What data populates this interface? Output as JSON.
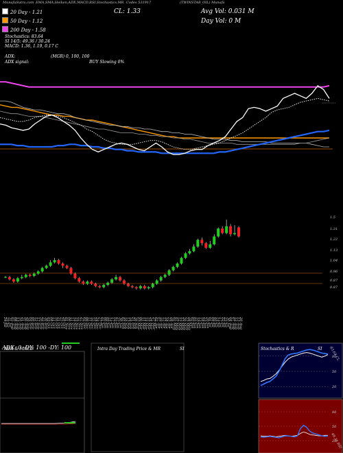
{
  "header": {
    "title_left": "MunafaSutra.com",
    "indicators": "EMA,SMA,Heiken,ADX,MACD,RSI,Stochastics,MR",
    "cl_label": "CL: 1.33",
    "symbol_left": "Codes 531917",
    "symbol_right": "(TWINSTAR_OIL) Munafa"
  },
  "legend": [
    {
      "label": "20 Day - 1.21",
      "color": "#ffffff"
    },
    {
      "label": "50 Day - 1.12",
      "color": "#ff9900"
    },
    {
      "label": "200 Day - 1.58",
      "color": "#ee44ee"
    }
  ],
  "volume": {
    "avg": "Avg Vol: 0.031 M",
    "day": "Day Vol: 0  M"
  },
  "stats": {
    "stochastics": "Stochastics: 83.64",
    "si": "SI 14/5: 49.36 / 30.24",
    "macd": "MACD: 1.36, 1.19, 0.17 C",
    "adx": "ADX:",
    "mgr": "(MGR) 0,  100,  100",
    "adx_signal": "ADX  signal:",
    "buy": "BUY Slowing 0%"
  },
  "price_axis": [
    "1.5",
    "1.31",
    "1.22",
    "1.13",
    "1.04",
    "0.96",
    "0.87",
    "0.87"
  ],
  "dates": [
    "24 Jul",
    "29 Jul",
    "31 Jul",
    "05 Aug",
    "08 Aug",
    "13 Aug",
    "16 Aug",
    "21 Aug",
    "26 Aug",
    "29 Aug",
    "04 Sep",
    "09 Sep",
    "12 Sep",
    "17 Sep",
    "20 Sep",
    "25 Sep",
    "30 Sep",
    "03 Oct",
    "08 Oct",
    "11 Oct",
    "16 Oct",
    "21 Oct",
    "25 Oct",
    "29 Oct",
    "01 Nov",
    "06 Nov",
    "11 Nov",
    "14 Nov",
    "19 Nov",
    "22 Nov",
    "27 Nov",
    "02 Dec",
    "06 Dec",
    "11 Dec",
    "16 Dec",
    "19 Dec",
    "24 Dec",
    "27 Dec",
    "01 Jan",
    "06 Jan",
    "09 Jan",
    "14 Jan",
    "17 Jan",
    "22 Jan",
    "27 Jan",
    "30 Jan",
    "05 Feb",
    "10 Feb",
    "13 Feb",
    "18 Feb",
    "21 Feb",
    "26 Feb",
    "03 Mar",
    "06 Mar",
    "11 Mar",
    "14 Mar",
    "19 Mar",
    "24 Mar",
    "27 Mar",
    "02 Apr",
    "07 Apr",
    "10 Apr",
    "15 Apr",
    "18 Apr",
    "23 Apr",
    "28 Apr",
    "02 May",
    "07 May",
    "12 May",
    "15 May",
    "20 May",
    "23 May",
    "28 May",
    "02 Jun",
    "05 Jun",
    "10 Jun",
    "13 Jun",
    "18 Jun",
    "23 Jun",
    "26 Jun",
    "01 Jul",
    "04 Jul",
    "09 Jul",
    "14 Jul",
    "17 Jul",
    "22 Jul",
    "25 Jul",
    "30 Jul",
    "04 Aug",
    "07 Aug",
    "12 Aug",
    "15 Aug",
    "20 Aug"
  ],
  "panels": {
    "adx_title": "ADX  & MACD",
    "adx_text": "ADX: 0  -DY: 100  -DY: 100",
    "intra_title": "Intra  Day Trading Price  & MR",
    "intra_si": "SI",
    "stoch_title": "Stochastics & R",
    "stoch_si": "SI",
    "stoch_axis_top": [
      "80",
      "50",
      "20"
    ],
    "stoch_axis_bottom": [
      "80",
      "50",
      "20"
    ],
    "stoch_value_label": "83.64 CL",
    "rsi_value_label": "49.36 RSI"
  },
  "chart_data": {
    "type": "candlestick",
    "ylim": [
      0.84,
      1.54
    ],
    "candles": [
      {
        "o": 0.97,
        "c": 0.97,
        "h": 0.98,
        "l": 0.96
      },
      {
        "o": 0.97,
        "c": 0.95,
        "h": 0.98,
        "l": 0.94
      },
      {
        "o": 0.95,
        "c": 0.93,
        "h": 0.96,
        "l": 0.92
      },
      {
        "o": 0.93,
        "c": 0.96,
        "h": 0.97,
        "l": 0.92
      },
      {
        "o": 0.96,
        "c": 0.97,
        "h": 0.99,
        "l": 0.95
      },
      {
        "o": 0.97,
        "c": 0.99,
        "h": 1.0,
        "l": 0.96
      },
      {
        "o": 0.99,
        "c": 0.98,
        "h": 1.0,
        "l": 0.97
      },
      {
        "o": 0.98,
        "c": 1.0,
        "h": 1.01,
        "l": 0.97
      },
      {
        "o": 1.0,
        "c": 1.02,
        "h": 1.03,
        "l": 0.99
      },
      {
        "o": 1.02,
        "c": 1.05,
        "h": 1.06,
        "l": 1.01
      },
      {
        "o": 1.05,
        "c": 1.07,
        "h": 1.08,
        "l": 1.04
      },
      {
        "o": 1.07,
        "c": 1.1,
        "h": 1.12,
        "l": 1.06
      },
      {
        "o": 1.1,
        "c": 1.12,
        "h": 1.14,
        "l": 1.09
      },
      {
        "o": 1.12,
        "c": 1.09,
        "h": 1.13,
        "l": 1.08
      },
      {
        "o": 1.09,
        "c": 1.07,
        "h": 1.1,
        "l": 1.05
      },
      {
        "o": 1.07,
        "c": 1.05,
        "h": 1.08,
        "l": 1.04
      },
      {
        "o": 1.05,
        "c": 1.0,
        "h": 1.06,
        "l": 0.99
      },
      {
        "o": 1.0,
        "c": 0.96,
        "h": 1.01,
        "l": 0.95
      },
      {
        "o": 0.96,
        "c": 0.93,
        "h": 0.97,
        "l": 0.92
      },
      {
        "o": 0.93,
        "c": 0.91,
        "h": 0.94,
        "l": 0.9
      },
      {
        "o": 0.91,
        "c": 0.93,
        "h": 0.94,
        "l": 0.9
      },
      {
        "o": 0.93,
        "c": 0.91,
        "h": 0.94,
        "l": 0.9
      },
      {
        "o": 0.91,
        "c": 0.89,
        "h": 0.92,
        "l": 0.88
      },
      {
        "o": 0.89,
        "c": 0.88,
        "h": 0.9,
        "l": 0.87
      },
      {
        "o": 0.88,
        "c": 0.9,
        "h": 0.91,
        "l": 0.87
      },
      {
        "o": 0.9,
        "c": 0.92,
        "h": 0.93,
        "l": 0.89
      },
      {
        "o": 0.92,
        "c": 0.95,
        "h": 0.96,
        "l": 0.91
      },
      {
        "o": 0.95,
        "c": 0.97,
        "h": 0.99,
        "l": 0.94
      },
      {
        "o": 0.97,
        "c": 0.94,
        "h": 0.98,
        "l": 0.93
      },
      {
        "o": 0.94,
        "c": 0.91,
        "h": 0.95,
        "l": 0.9
      },
      {
        "o": 0.91,
        "c": 0.89,
        "h": 0.92,
        "l": 0.88
      },
      {
        "o": 0.89,
        "c": 0.88,
        "h": 0.9,
        "l": 0.87
      },
      {
        "o": 0.88,
        "c": 0.87,
        "h": 0.89,
        "l": 0.86
      },
      {
        "o": 0.87,
        "c": 0.89,
        "h": 0.9,
        "l": 0.86
      },
      {
        "o": 0.89,
        "c": 0.87,
        "h": 0.9,
        "l": 0.86
      },
      {
        "o": 0.87,
        "c": 0.88,
        "h": 0.89,
        "l": 0.86
      },
      {
        "o": 0.88,
        "c": 0.91,
        "h": 0.92,
        "l": 0.87
      },
      {
        "o": 0.91,
        "c": 0.94,
        "h": 0.95,
        "l": 0.9
      },
      {
        "o": 0.94,
        "c": 0.97,
        "h": 0.98,
        "l": 0.93
      },
      {
        "o": 0.97,
        "c": 0.99,
        "h": 1.0,
        "l": 0.96
      },
      {
        "o": 0.99,
        "c": 1.03,
        "h": 1.04,
        "l": 0.98
      },
      {
        "o": 1.03,
        "c": 1.06,
        "h": 1.07,
        "l": 1.02
      },
      {
        "o": 1.06,
        "c": 1.09,
        "h": 1.1,
        "l": 1.05
      },
      {
        "o": 1.09,
        "c": 1.14,
        "h": 1.15,
        "l": 1.08
      },
      {
        "o": 1.14,
        "c": 1.18,
        "h": 1.19,
        "l": 1.13
      },
      {
        "o": 1.18,
        "c": 1.2,
        "h": 1.22,
        "l": 1.17
      },
      {
        "o": 1.2,
        "c": 1.24,
        "h": 1.26,
        "l": 1.19
      },
      {
        "o": 1.24,
        "c": 1.3,
        "h": 1.31,
        "l": 1.23
      },
      {
        "o": 1.3,
        "c": 1.27,
        "h": 1.32,
        "l": 1.25
      },
      {
        "o": 1.27,
        "c": 1.23,
        "h": 1.28,
        "l": 1.22
      },
      {
        "o": 1.23,
        "c": 1.26,
        "h": 1.29,
        "l": 1.22
      },
      {
        "o": 1.26,
        "c": 1.33,
        "h": 1.35,
        "l": 1.25
      },
      {
        "o": 1.33,
        "c": 1.4,
        "h": 1.41,
        "l": 1.32
      },
      {
        "o": 1.4,
        "c": 1.36,
        "h": 1.42,
        "l": 1.35
      },
      {
        "o": 1.36,
        "c": 1.42,
        "h": 1.48,
        "l": 1.35
      },
      {
        "o": 1.42,
        "c": 1.35,
        "h": 1.44,
        "l": 1.33
      },
      {
        "o": 1.35,
        "c": 1.36,
        "h": 1.43,
        "l": 1.34
      },
      {
        "o": 1.41,
        "c": 1.33,
        "h": 1.42,
        "l": 1.32
      }
    ],
    "sma20": [
      1.46,
      1.46,
      1.45,
      1.43,
      1.41,
      1.4,
      1.39,
      1.39,
      1.38,
      1.37,
      1.36,
      1.36,
      1.35,
      1.33,
      1.32,
      1.31,
      1.3,
      1.29,
      1.28,
      1.27,
      1.27,
      1.26,
      1.26,
      1.25,
      1.25,
      1.24,
      1.24,
      1.23,
      1.22,
      1.22,
      1.21,
      1.21,
      1.2,
      1.2,
      1.19,
      1.18,
      1.17,
      1.16,
      1.16,
      1.16,
      1.15,
      1.15,
      1.14,
      1.14,
      1.14,
      1.14,
      1.14,
      1.13,
      1.13,
      1.13,
      1.13,
      1.13,
      1.13,
      1.13,
      1.12,
      1.11,
      1.1,
      1.1
    ],
    "ema20": [
      1.38,
      1.37,
      1.36,
      1.36,
      1.35,
      1.34,
      1.34,
      1.34,
      1.33,
      1.32,
      1.31,
      1.3,
      1.29,
      1.28,
      1.27,
      1.26,
      1.25,
      1.24,
      1.24,
      1.23,
      1.22,
      1.21,
      1.21,
      1.21,
      1.2,
      1.2,
      1.19,
      1.19,
      1.18,
      1.18,
      1.17,
      1.17,
      1.16,
      1.16,
      1.15,
      1.14,
      1.13,
      1.13,
      1.13,
      1.13,
      1.13,
      1.12,
      1.12,
      1.12,
      1.12,
      1.12,
      1.12,
      1.12,
      1.12,
      1.12,
      1.12,
      1.12,
      1.13,
      1.13,
      1.14,
      1.15,
      1.16,
      1.17
    ],
    "ema_short": [
      1.33,
      1.32,
      1.31,
      1.3,
      1.3,
      1.31,
      1.33,
      1.34,
      1.35,
      1.35,
      1.34,
      1.33,
      1.31,
      1.29,
      1.27,
      1.24,
      1.22,
      1.19,
      1.16,
      1.14,
      1.13,
      1.12,
      1.12,
      1.12,
      1.13,
      1.14,
      1.15,
      1.15,
      1.14,
      1.12,
      1.1,
      1.09,
      1.08,
      1.08,
      1.09,
      1.1,
      1.11,
      1.12,
      1.13,
      1.15,
      1.17,
      1.19,
      1.21,
      1.24,
      1.27,
      1.3,
      1.33,
      1.37,
      1.39,
      1.4,
      1.41,
      1.43,
      1.45,
      1.46,
      1.47,
      1.48,
      1.47,
      1.46
    ],
    "line_white": [
      1.28,
      1.27,
      1.25,
      1.24,
      1.23,
      1.24,
      1.28,
      1.31,
      1.34,
      1.35,
      1.33,
      1.3,
      1.27,
      1.23,
      1.17,
      1.12,
      1.08,
      1.06,
      1.08,
      1.1,
      1.12,
      1.13,
      1.12,
      1.1,
      1.08,
      1.07,
      1.1,
      1.13,
      1.1,
      1.06,
      1.04,
      1.04,
      1.05,
      1.07,
      1.08,
      1.08,
      1.11,
      1.13,
      1.15,
      1.18,
      1.24,
      1.3,
      1.33,
      1.4,
      1.41,
      1.4,
      1.38,
      1.4,
      1.42,
      1.48,
      1.5,
      1.52,
      1.5,
      1.48,
      1.52,
      1.58,
      1.55,
      1.48
    ],
    "ma50_orange": [
      1.43,
      1.42,
      1.41,
      1.41,
      1.4,
      1.39,
      1.38,
      1.37,
      1.36,
      1.35,
      1.35,
      1.34,
      1.34,
      1.33,
      1.32,
      1.31,
      1.31,
      1.3,
      1.29,
      1.28,
      1.27,
      1.26,
      1.25,
      1.24,
      1.23,
      1.22,
      1.21,
      1.2,
      1.19,
      1.18,
      1.18,
      1.17,
      1.17,
      1.17,
      1.17,
      1.17,
      1.17,
      1.17,
      1.17,
      1.17,
      1.17,
      1.17,
      1.17,
      1.17,
      1.17,
      1.17,
      1.17,
      1.17,
      1.17,
      1.17,
      1.17,
      1.17,
      1.17,
      1.17,
      1.17,
      1.17,
      1.17,
      1.17
    ],
    "ma200_magenta": [
      1.61,
      1.61,
      1.6,
      1.59,
      1.58,
      1.57,
      1.57,
      1.57,
      1.57,
      1.57,
      1.57,
      1.57,
      1.57,
      1.57,
      1.57,
      1.57,
      1.57,
      1.57,
      1.57,
      1.57,
      1.57,
      1.57,
      1.57,
      1.57,
      1.57,
      1.57,
      1.57,
      1.57,
      1.57,
      1.57,
      1.57,
      1.57,
      1.57,
      1.57,
      1.57,
      1.57,
      1.57,
      1.57,
      1.57,
      1.57,
      1.57,
      1.57,
      1.57,
      1.57,
      1.57,
      1.57,
      1.57,
      1.57,
      1.57,
      1.57,
      1.57,
      1.57,
      1.57,
      1.57,
      1.57,
      1.57,
      1.57,
      1.58
    ],
    "blue_line": [
      1.12,
      1.12,
      1.12,
      1.11,
      1.11,
      1.1,
      1.1,
      1.1,
      1.1,
      1.1,
      1.11,
      1.11,
      1.12,
      1.12,
      1.11,
      1.11,
      1.1,
      1.1,
      1.09,
      1.09,
      1.08,
      1.08,
      1.07,
      1.07,
      1.06,
      1.06,
      1.06,
      1.06,
      1.05,
      1.05,
      1.05,
      1.05,
      1.05,
      1.05,
      1.05,
      1.05,
      1.05,
      1.05,
      1.06,
      1.06,
      1.07,
      1.08,
      1.09,
      1.1,
      1.11,
      1.12,
      1.13,
      1.14,
      1.15,
      1.16,
      1.17,
      1.18,
      1.19,
      1.2,
      1.21,
      1.22,
      1.22,
      1.23
    ],
    "stochastics": [
      22,
      25,
      28,
      30,
      35,
      40,
      50,
      62,
      75,
      82,
      84,
      85,
      86,
      88,
      90,
      92,
      93,
      92,
      90,
      88,
      86,
      85,
      84
    ],
    "rsi": [
      30,
      32,
      35,
      36,
      40,
      45,
      52,
      60,
      68,
      74,
      78,
      80,
      82,
      84,
      86,
      87,
      86,
      84,
      82,
      80,
      78,
      80,
      83
    ],
    "lower_stoch": [
      28,
      27,
      28,
      29,
      28,
      27,
      26,
      28,
      30,
      30,
      29,
      28,
      30,
      45,
      52,
      48,
      40,
      36,
      34,
      32,
      30,
      29,
      30
    ],
    "lower_rsi": [
      30,
      29,
      29,
      30,
      29,
      28,
      29,
      30,
      31,
      30,
      29,
      30,
      31,
      35,
      38,
      36,
      33,
      32,
      31,
      30,
      30,
      31,
      31
    ]
  }
}
